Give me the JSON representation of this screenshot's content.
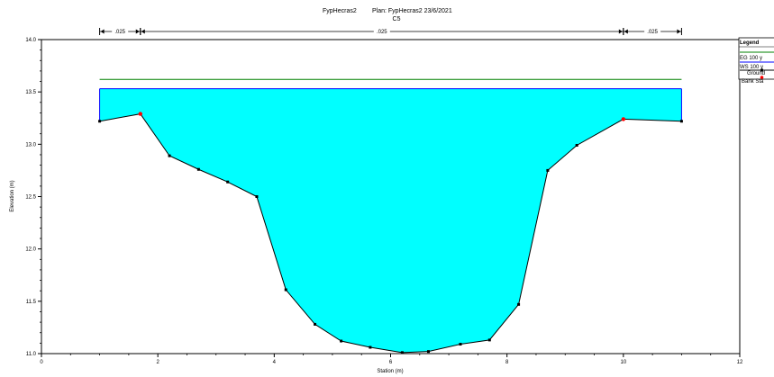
{
  "header": {
    "project": "FypHecras2",
    "plan": "Plan: FypHecras2    23/6/2021",
    "section": "C5"
  },
  "chart_data": {
    "type": "area",
    "xlabel": "Station (m)",
    "ylabel": "Elevation (m)",
    "xlim": [
      0,
      12
    ],
    "ylim": [
      11.0,
      14.0
    ],
    "x_ticks": [
      "0",
      "2",
      "4",
      "6",
      "8",
      "10",
      "12"
    ],
    "y_ticks": [
      "11.0",
      "11.5",
      "12.0",
      "12.5",
      "13.0",
      "13.5",
      "14.0"
    ],
    "ground": {
      "x": [
        1.0,
        1.7,
        2.2,
        2.7,
        3.2,
        3.7,
        4.2,
        4.7,
        5.15,
        5.65,
        6.2,
        6.65,
        7.2,
        7.7,
        8.2,
        8.7,
        9.2,
        10.0,
        11.0
      ],
      "y": [
        13.22,
        13.29,
        12.89,
        12.76,
        12.64,
        12.5,
        11.61,
        11.28,
        11.12,
        11.06,
        11.01,
        11.02,
        11.09,
        11.13,
        11.47,
        12.75,
        12.99,
        13.24,
        13.22
      ]
    },
    "bank_stations": [
      {
        "x": 1.7,
        "y": 13.29
      },
      {
        "x": 10.0,
        "y": 13.24
      }
    ],
    "ws_elevation": 13.53,
    "eg_elevation": 13.62,
    "x_extent": [
      1.0,
      11.0
    ],
    "mannings": [
      {
        "label": ".025",
        "from": 1.0,
        "to": 1.7
      },
      {
        "label": ".025",
        "from": 1.7,
        "to": 10.0
      },
      {
        "label": ".025",
        "from": 10.0,
        "to": 11.0
      }
    ],
    "colors": {
      "water": "#00ffff",
      "ws_line": "#0000ff",
      "eg_line": "#008000",
      "ground": "#000000",
      "bank": "#ff0000"
    },
    "grid": false
  },
  "legend": {
    "title": "Legend",
    "items": [
      {
        "label": "EG 100 y"
      },
      {
        "label": "WS 100 y"
      },
      {
        "label": "Ground"
      },
      {
        "label": "Bank Sta"
      }
    ]
  }
}
